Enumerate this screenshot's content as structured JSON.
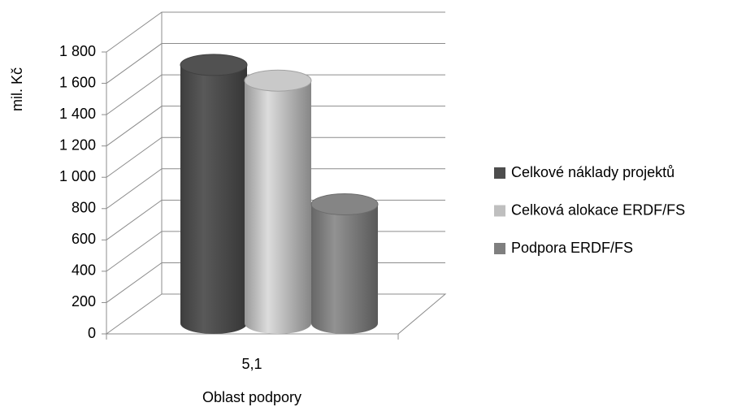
{
  "chart_data": {
    "type": "bar3d",
    "y_axis_label": "mil. Kč",
    "x_axis_label": "Oblast podpory",
    "categories": [
      "5,1"
    ],
    "series": [
      {
        "name": "Celkové náklady projektů",
        "color": "#4d4d4d",
        "values": [
          1650
        ]
      },
      {
        "name": "Celková alokace ERDF/FS",
        "color": "#bfbfbf",
        "values": [
          1550
        ]
      },
      {
        "name": "Podpora ERDF/FS",
        "color": "#7f7f7f",
        "values": [
          760
        ]
      }
    ],
    "ylim": [
      0,
      1800
    ],
    "yticks": [
      0,
      200,
      400,
      600,
      800,
      {
        "value": 1000,
        "label": "1 000"
      },
      {
        "value": 1200,
        "label": "1 200"
      },
      {
        "value": 1400,
        "label": "1 400"
      },
      {
        "value": 1600,
        "label": "1 600"
      },
      {
        "value": 1800,
        "label": "1 800"
      }
    ],
    "grid": true,
    "legend": "right"
  }
}
